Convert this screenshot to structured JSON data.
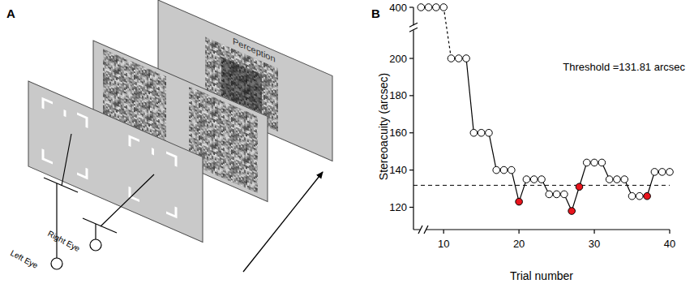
{
  "panel_labels": [
    "A",
    "B"
  ],
  "diagram": {
    "perception": "Perception",
    "left_eye": "Left Eye",
    "right_eye": "Right Eye"
  },
  "chart_data": {
    "type": "line",
    "x_label": "Trial number",
    "y_label": "Stereoacuity (arcsec)",
    "x": [
      7,
      8,
      9,
      10,
      11,
      12,
      13,
      14,
      15,
      16,
      17,
      18,
      19,
      20,
      21,
      22,
      23,
      24,
      25,
      26,
      27,
      28,
      29,
      30,
      31,
      32,
      33,
      34,
      35,
      36,
      37,
      38,
      39,
      40
    ],
    "series": [
      {
        "color": "#000000",
        "marker": "circle",
        "line_style": "solid",
        "colors": [
          "#ffffff",
          "#ffffff",
          "#ffffff",
          "#ffffff",
          "#ffffff",
          "#ffffff",
          "#ffffff",
          "#ffffff",
          "#ffffff",
          "#ffffff",
          "#ffffff",
          "#ffffff",
          "#ffffff",
          "#e8141c",
          "#ffffff",
          "#ffffff",
          "#ffffff",
          "#ffffff",
          "#ffffff",
          "#ffffff",
          "#e8141c",
          "#e8141c",
          "#ffffff",
          "#ffffff",
          "#ffffff",
          "#ffffff",
          "#ffffff",
          "#ffffff",
          "#ffffff",
          "#ffffff",
          "#e8141c",
          "#ffffff",
          "#ffffff",
          "#ffffff"
        ],
        "values": [
          400,
          400,
          400,
          400,
          200,
          200,
          200,
          160,
          160,
          160,
          140,
          140,
          140,
          123,
          135,
          135,
          135,
          127,
          127,
          127,
          118,
          131,
          144,
          144,
          144,
          135,
          135,
          135,
          126,
          126,
          126,
          139,
          139,
          139
        ]
      }
    ],
    "reference_line": {
      "value": 131.81,
      "label": "Threshold =131.81 arcsec",
      "line_style": "dashed"
    },
    "xlim": [
      6,
      40
    ],
    "xticks": [
      10,
      20,
      30,
      40
    ],
    "ylim": [
      108,
      400
    ],
    "yticks": [
      120,
      140,
      160,
      180,
      200,
      400
    ],
    "grid": false
  }
}
